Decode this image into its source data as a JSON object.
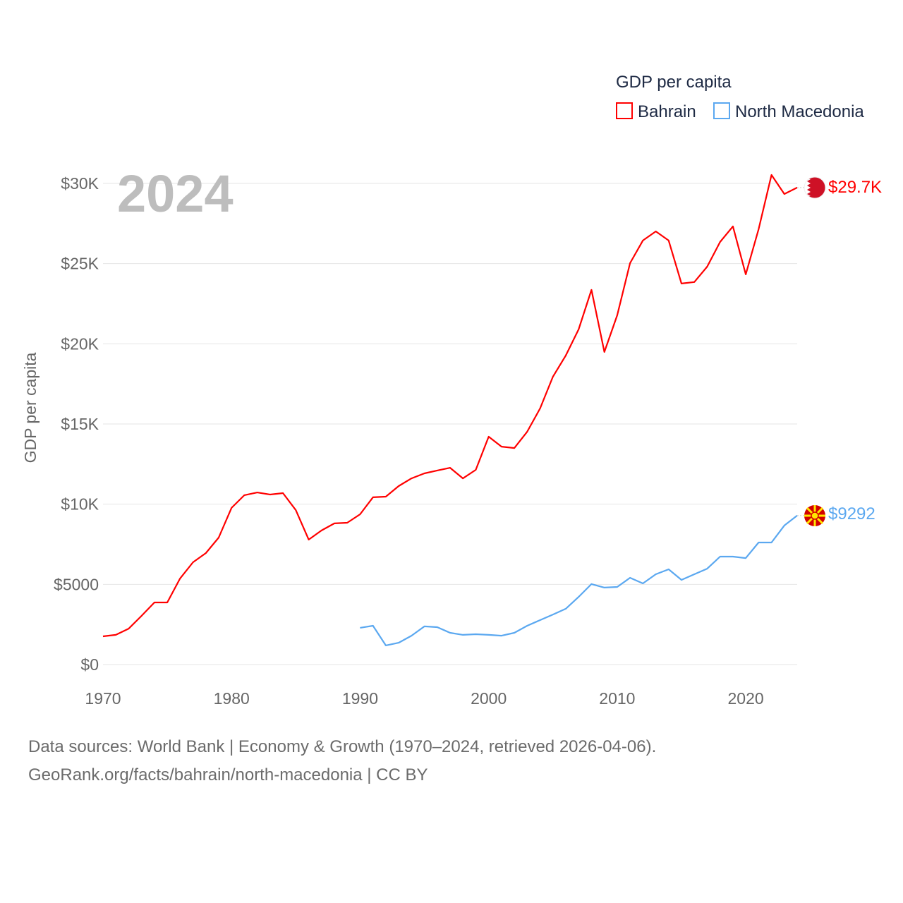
{
  "chart_data": {
    "type": "line",
    "year_label": "2024",
    "ylabel": "GDP per capita",
    "legend": {
      "title": "GDP per capita",
      "placement": "top-right"
    },
    "xlim": [
      1970,
      2024
    ],
    "ylim": [
      0,
      31000
    ],
    "x_ticks": [
      1970,
      1980,
      1990,
      2000,
      2010,
      2020
    ],
    "x_tick_labels": [
      "1970",
      "1980",
      "1990",
      "2000",
      "2010",
      "2020"
    ],
    "y_ticks": [
      0,
      5000,
      10000,
      15000,
      20000,
      25000,
      30000
    ],
    "y_tick_labels": [
      "$0",
      "$5000",
      "$10K",
      "$15K",
      "$20K",
      "$25K",
      "$30K"
    ],
    "grid": true,
    "series": [
      {
        "name": "Bahrain",
        "color": "#ff0000",
        "end_label": "$29.7K",
        "start_year": 1970,
        "values": [
          1760,
          1850,
          2240,
          3040,
          3870,
          3870,
          5370,
          6380,
          6950,
          7920,
          9770,
          10560,
          10730,
          10600,
          10690,
          9630,
          7790,
          8360,
          8800,
          8840,
          9370,
          10430,
          10470,
          11130,
          11610,
          11920,
          12100,
          12270,
          11610,
          12140,
          14210,
          13590,
          13500,
          14520,
          15970,
          17950,
          19270,
          20900,
          23360,
          19490,
          21780,
          25030,
          26440,
          27010,
          26440,
          23760,
          23850,
          24810,
          26350,
          27320,
          24330,
          27140,
          30530,
          29340,
          29740
        ]
      },
      {
        "name": "North Macedonia",
        "color": "#5ba8f0",
        "end_label": "$9292",
        "start_year": 1990,
        "values": [
          2290,
          2420,
          1190,
          1360,
          1800,
          2380,
          2330,
          1980,
          1850,
          1890,
          1850,
          1800,
          1980,
          2420,
          2770,
          3120,
          3480,
          4220,
          5020,
          4800,
          4840,
          5410,
          5060,
          5630,
          5940,
          5280,
          5630,
          5980,
          6730,
          6730,
          6640,
          7610,
          7610,
          8670,
          9292
        ]
      }
    ]
  },
  "footer": {
    "line1": "Data sources: World Bank | Economy & Growth (1970–2024, retrieved 2026-04-06).",
    "line2": "GeoRank.org/facts/bahrain/north-macedonia | CC BY"
  }
}
